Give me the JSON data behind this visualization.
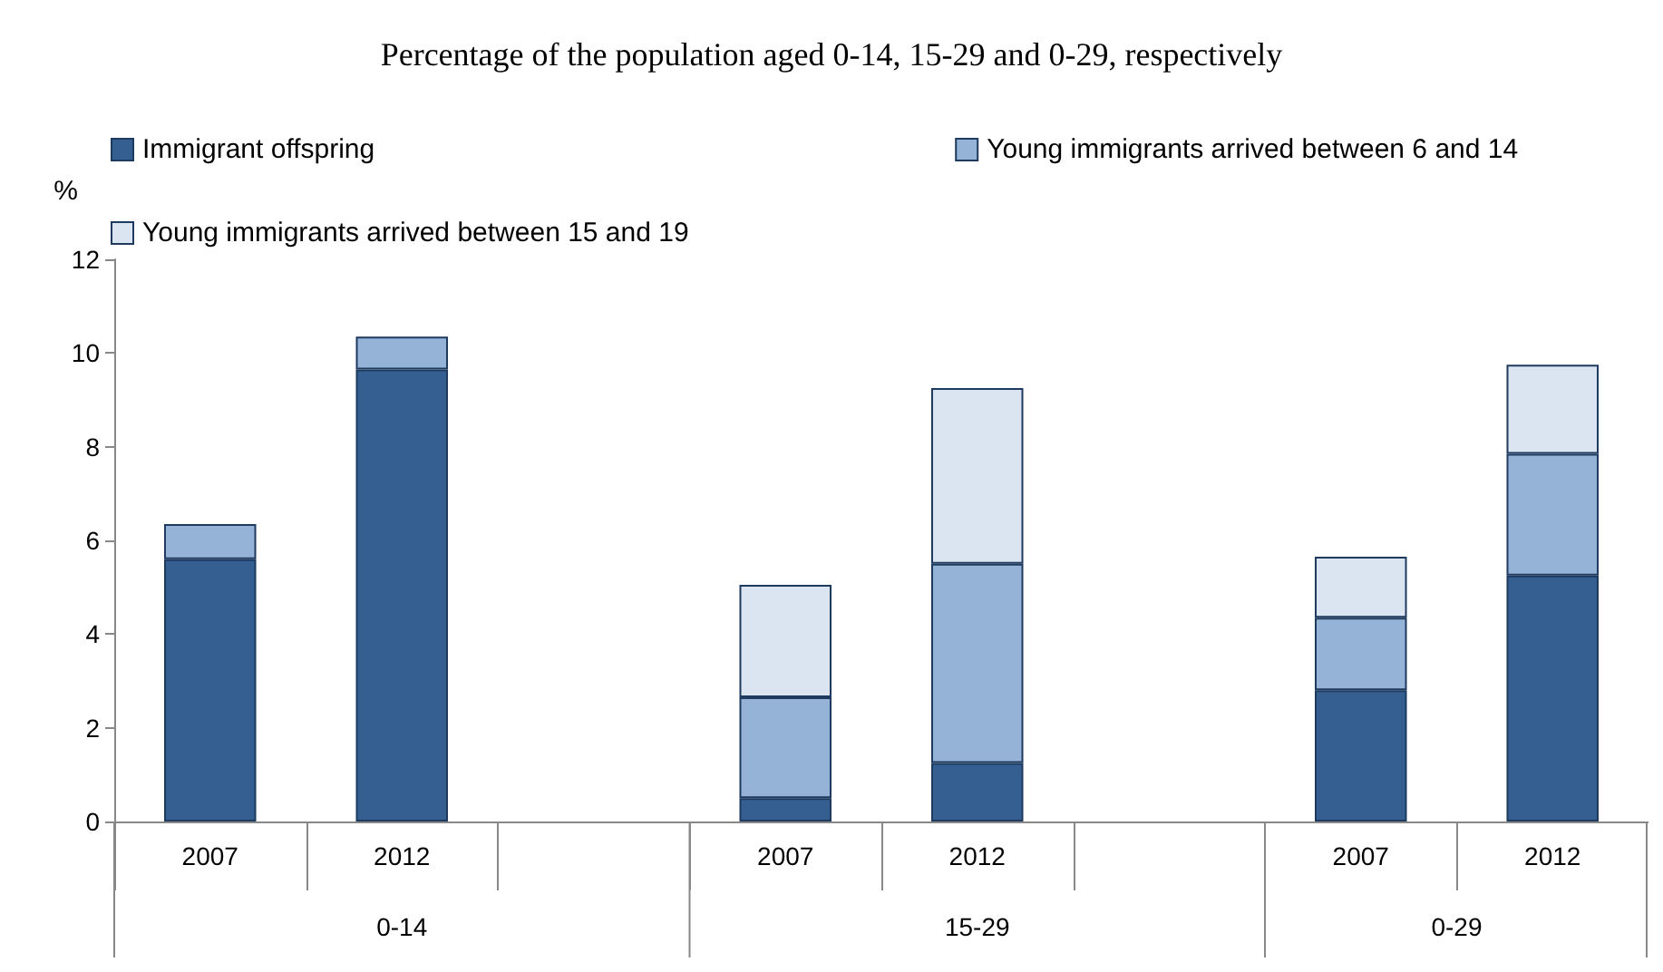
{
  "chart_data": {
    "type": "bar",
    "title": "Percentage of the population aged 0-14, 15-29 and 0-29, respectively",
    "ylabel": "%",
    "categories": [
      "2007",
      "2012",
      null,
      "2007",
      "2012",
      null,
      "2007",
      "2012"
    ],
    "series": [
      {
        "name": "Immigrant offspring",
        "color": "#365f91",
        "values": [
          5.6,
          9.65,
          null,
          0.5,
          1.25,
          null,
          2.8,
          5.25
        ]
      },
      {
        "name": "Young immigrants arrived between 6 and 14",
        "color": "#95b3d7",
        "values": [
          0.75,
          0.7,
          null,
          2.15,
          4.25,
          null,
          1.55,
          2.6
        ]
      },
      {
        "name": "Young immigrants arrived between 15 and 19",
        "color": "#dbe5f1",
        "values": [
          null,
          null,
          null,
          2.4,
          3.75,
          null,
          1.3,
          1.9
        ]
      }
    ],
    "stacked": true,
    "ylim": [
      0,
      12
    ],
    "yticks": [
      0,
      2,
      4,
      6,
      8,
      10,
      12
    ],
    "grid": false,
    "legend": "top",
    "annotations": [
      "0-14",
      "15-29",
      "0-29"
    ]
  }
}
